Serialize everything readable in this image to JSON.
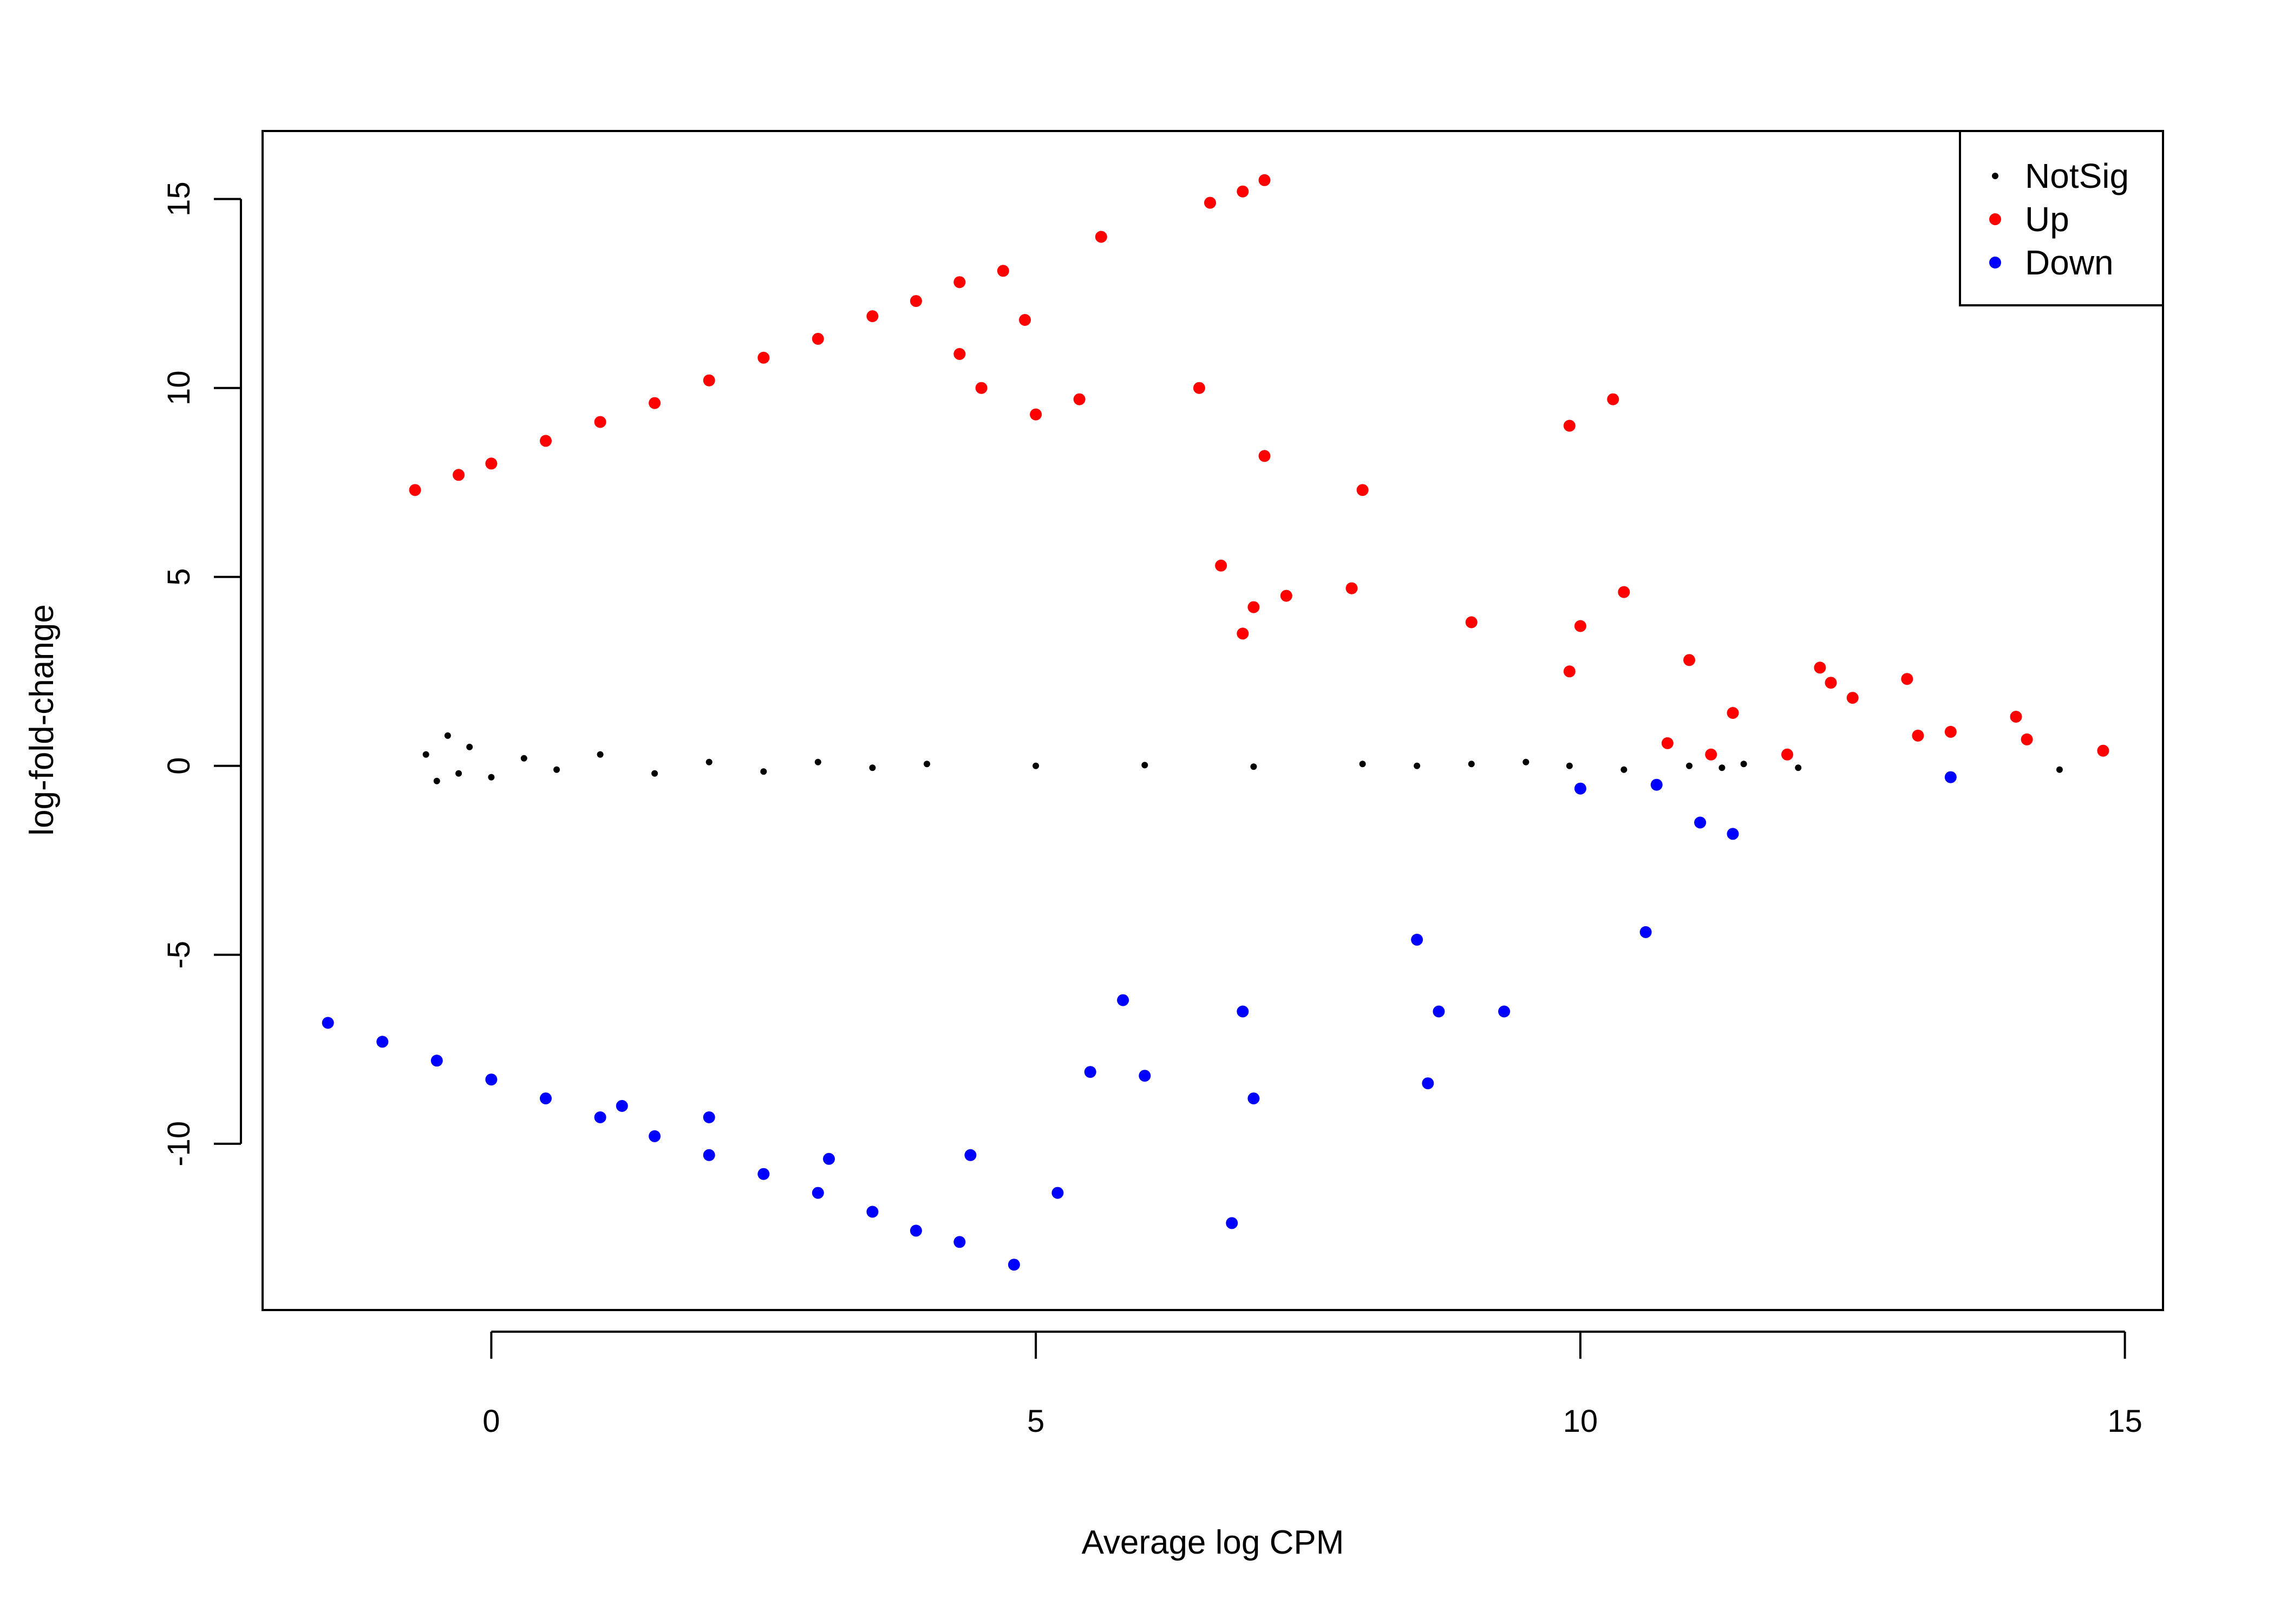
{
  "chart_data": {
    "type": "scatter",
    "title": "",
    "xlabel": "Average log CPM",
    "ylabel": "log-fold-change",
    "xlim": [
      -2.1,
      15.35
    ],
    "ylim": [
      -14.4,
      16.8
    ],
    "x_ticks": [
      0,
      5,
      10,
      15
    ],
    "y_ticks": [
      -10,
      -5,
      0,
      5,
      10,
      15
    ],
    "x_tick_labels": [
      "0",
      "5",
      "10",
      "15"
    ],
    "y_tick_labels": [
      "-10",
      "-5",
      "0",
      "5",
      "10",
      "15"
    ],
    "grid": false,
    "legend_position": "top-right",
    "series": [
      {
        "name": "NotSig",
        "color": "#000000",
        "points": [
          [
            -0.6,
            0.3
          ],
          [
            -0.5,
            -0.4
          ],
          [
            -0.4,
            0.8
          ],
          [
            -0.3,
            -0.2
          ],
          [
            -0.2,
            0.5
          ],
          [
            0.0,
            -0.3
          ],
          [
            0.3,
            0.2
          ],
          [
            0.6,
            -0.1
          ],
          [
            1.0,
            0.3
          ],
          [
            1.5,
            -0.2
          ],
          [
            2.0,
            0.1
          ],
          [
            2.5,
            -0.15
          ],
          [
            3.0,
            0.1
          ],
          [
            3.5,
            -0.05
          ],
          [
            4.0,
            0.05
          ],
          [
            5.0,
            0.0
          ],
          [
            6.0,
            0.02
          ],
          [
            7.0,
            -0.02
          ],
          [
            8.0,
            0.05
          ],
          [
            8.5,
            0.0
          ],
          [
            9.0,
            0.05
          ],
          [
            9.5,
            0.1
          ],
          [
            9.9,
            0.0
          ],
          [
            10.4,
            -0.1
          ],
          [
            11.0,
            0.0
          ],
          [
            11.3,
            -0.05
          ],
          [
            11.5,
            0.05
          ],
          [
            12.0,
            -0.05
          ],
          [
            14.4,
            -0.1
          ]
        ]
      },
      {
        "name": "Up",
        "color": "#ff0000",
        "points": [
          [
            -0.7,
            7.3
          ],
          [
            -0.3,
            7.7
          ],
          [
            0.0,
            8.0
          ],
          [
            0.5,
            8.6
          ],
          [
            1.0,
            9.1
          ],
          [
            1.5,
            9.6
          ],
          [
            2.0,
            10.2
          ],
          [
            2.5,
            10.8
          ],
          [
            3.0,
            11.3
          ],
          [
            3.5,
            11.9
          ],
          [
            3.9,
            12.3
          ],
          [
            4.3,
            12.8
          ],
          [
            4.7,
            13.1
          ],
          [
            5.6,
            14.0
          ],
          [
            6.6,
            14.9
          ],
          [
            6.9,
            15.2
          ],
          [
            7.1,
            15.5
          ],
          [
            4.3,
            10.9
          ],
          [
            4.9,
            11.8
          ],
          [
            4.5,
            10.0
          ],
          [
            5.0,
            9.3
          ],
          [
            5.4,
            9.7
          ],
          [
            6.5,
            10.0
          ],
          [
            7.1,
            8.2
          ],
          [
            8.0,
            7.3
          ],
          [
            9.9,
            9.0
          ],
          [
            10.3,
            9.7
          ],
          [
            6.7,
            5.3
          ],
          [
            7.0,
            4.2
          ],
          [
            7.3,
            4.5
          ],
          [
            7.9,
            4.7
          ],
          [
            9.0,
            3.8
          ],
          [
            9.9,
            2.5
          ],
          [
            10.0,
            3.7
          ],
          [
            10.4,
            4.6
          ],
          [
            11.0,
            2.8
          ],
          [
            12.2,
            2.6
          ],
          [
            12.3,
            2.2
          ],
          [
            12.5,
            1.8
          ],
          [
            13.0,
            2.3
          ],
          [
            13.1,
            0.8
          ],
          [
            13.4,
            0.9
          ],
          [
            14.0,
            1.3
          ],
          [
            14.1,
            0.7
          ],
          [
            14.8,
            0.4
          ],
          [
            11.2,
            0.3
          ],
          [
            11.9,
            0.3
          ],
          [
            11.4,
            1.4
          ],
          [
            10.8,
            0.6
          ],
          [
            6.9,
            3.5
          ]
        ]
      },
      {
        "name": "Down",
        "color": "#0000ff",
        "points": [
          [
            -1.5,
            -6.8
          ],
          [
            -1.0,
            -7.3
          ],
          [
            -0.5,
            -7.8
          ],
          [
            0.0,
            -8.3
          ],
          [
            0.5,
            -8.8
          ],
          [
            1.0,
            -9.3
          ],
          [
            1.5,
            -9.8
          ],
          [
            2.0,
            -10.3
          ],
          [
            2.5,
            -10.8
          ],
          [
            3.0,
            -11.3
          ],
          [
            3.5,
            -11.8
          ],
          [
            3.9,
            -12.3
          ],
          [
            4.3,
            -12.6
          ],
          [
            4.8,
            -13.2
          ],
          [
            5.2,
            -11.3
          ],
          [
            6.8,
            -12.1
          ],
          [
            4.4,
            -10.3
          ],
          [
            7.0,
            -8.8
          ],
          [
            6.0,
            -8.2
          ],
          [
            5.5,
            -8.1
          ],
          [
            8.6,
            -8.4
          ],
          [
            8.7,
            -6.5
          ],
          [
            9.3,
            -6.5
          ],
          [
            8.5,
            -4.6
          ],
          [
            10.6,
            -4.4
          ],
          [
            11.1,
            -1.5
          ],
          [
            11.4,
            -1.8
          ],
          [
            13.4,
            -0.3
          ],
          [
            10.0,
            -0.6
          ],
          [
            10.7,
            -0.5
          ],
          [
            3.1,
            -10.4
          ],
          [
            1.2,
            -9.0
          ],
          [
            2.0,
            -9.3
          ],
          [
            6.9,
            -6.5
          ],
          [
            5.8,
            -6.2
          ]
        ]
      }
    ]
  }
}
